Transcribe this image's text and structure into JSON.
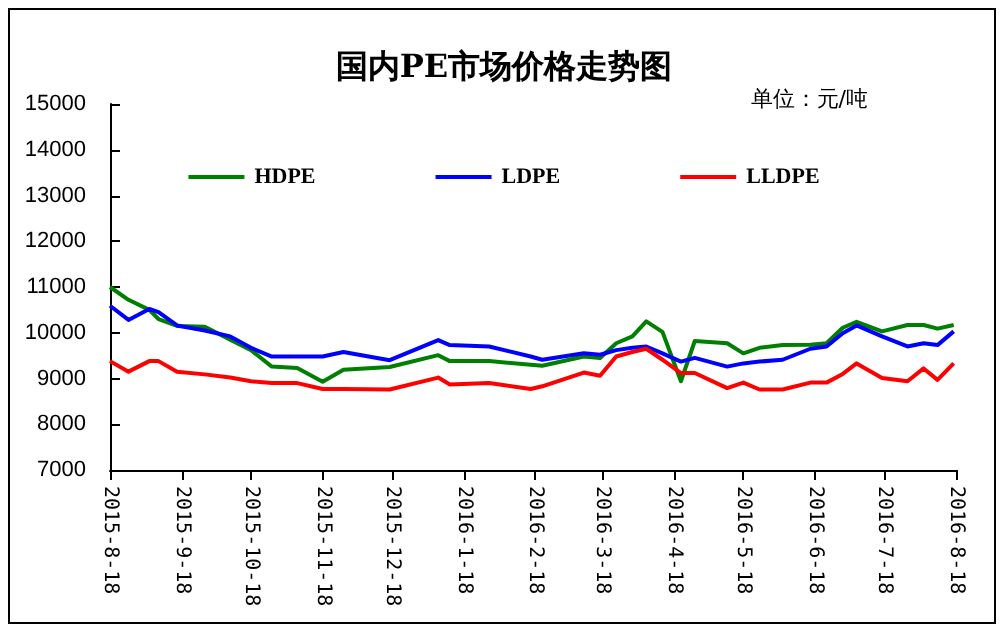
{
  "chart_data": {
    "type": "line",
    "title": "国内PE市场价格走势图",
    "annotations": [
      "单位：元/吨"
    ],
    "x": [
      "2015-08-18",
      "2015-08-26",
      "2015-09-04",
      "2015-09-08",
      "2015-09-16",
      "2015-09-28",
      "2015-10-09",
      "2015-10-18",
      "2015-10-27",
      "2015-11-07",
      "2015-11-18",
      "2015-11-27",
      "2015-12-17",
      "2016-01-07",
      "2016-01-12",
      "2016-01-29",
      "2016-02-16",
      "2016-02-21",
      "2016-03-10",
      "2016-03-17",
      "2016-03-24",
      "2016-03-31",
      "2016-04-06",
      "2016-04-13",
      "2016-04-21",
      "2016-04-27",
      "2016-05-11",
      "2016-05-18",
      "2016-05-25",
      "2016-06-04",
      "2016-06-16",
      "2016-06-23",
      "2016-06-30",
      "2016-07-06",
      "2016-07-17",
      "2016-07-28",
      "2016-08-04",
      "2016-08-10",
      "2016-08-17"
    ],
    "series": [
      {
        "name": "HDPE",
        "color": "#008000",
        "values": [
          11000,
          10720,
          10500,
          10300,
          10150,
          10130,
          9850,
          9620,
          9260,
          9230,
          8930,
          9190,
          9250,
          9510,
          9380,
          9380,
          9300,
          9280,
          9480,
          9450,
          9770,
          9920,
          10250,
          10020,
          8940,
          9820,
          9770,
          9550,
          9670,
          9730,
          9740,
          9770,
          10110,
          10240,
          10030,
          10170,
          10170,
          10090,
          10170
        ]
      },
      {
        "name": "LDPE",
        "color": "#0000ff",
        "values": [
          10590,
          10280,
          10520,
          10450,
          10160,
          10050,
          9920,
          9670,
          9480,
          9480,
          9480,
          9580,
          9400,
          9840,
          9730,
          9700,
          9480,
          9410,
          9550,
          9520,
          9620,
          9670,
          9700,
          9550,
          9370,
          9450,
          9260,
          9330,
          9370,
          9410,
          9650,
          9700,
          9990,
          10160,
          9920,
          9700,
          9770,
          9730,
          10030
        ]
      },
      {
        "name": "LLDPE",
        "color": "#ff0000",
        "values": [
          9380,
          9150,
          9380,
          9380,
          9150,
          9090,
          9020,
          8940,
          8900,
          8900,
          8770,
          8770,
          8760,
          9020,
          8870,
          8900,
          8770,
          8830,
          9130,
          9060,
          9480,
          9580,
          9650,
          9410,
          9120,
          9120,
          8790,
          8910,
          8760,
          8760,
          8910,
          8910,
          9100,
          9330,
          9010,
          8940,
          9220,
          8970,
          9330
        ]
      }
    ],
    "xlim": [
      "2015-08-18",
      "2016-08-18"
    ],
    "xticks": [
      {
        "value": "2015-08-18",
        "label": "2015-8-18"
      },
      {
        "value": "2015-09-18",
        "label": "2015-9-18"
      },
      {
        "value": "2015-10-18",
        "label": "2015-10-18"
      },
      {
        "value": "2015-11-18",
        "label": "2015-11-18"
      },
      {
        "value": "2015-12-18",
        "label": "2015-12-18"
      },
      {
        "value": "2016-01-18",
        "label": "2016-1-18"
      },
      {
        "value": "2016-02-18",
        "label": "2016-2-18"
      },
      {
        "value": "2016-03-18",
        "label": "2016-3-18"
      },
      {
        "value": "2016-04-18",
        "label": "2016-4-18"
      },
      {
        "value": "2016-05-18",
        "label": "2016-5-18"
      },
      {
        "value": "2016-06-18",
        "label": "2016-6-18"
      },
      {
        "value": "2016-07-18",
        "label": "2016-7-18"
      },
      {
        "value": "2016-08-18",
        "label": "2016-8-18"
      }
    ],
    "ylim": [
      7000,
      15000
    ],
    "yticks": [
      7000,
      8000,
      9000,
      10000,
      11000,
      12000,
      13000,
      14000,
      15000
    ],
    "grid": false,
    "legend": "top",
    "marker": "none",
    "line_style": "solid"
  }
}
